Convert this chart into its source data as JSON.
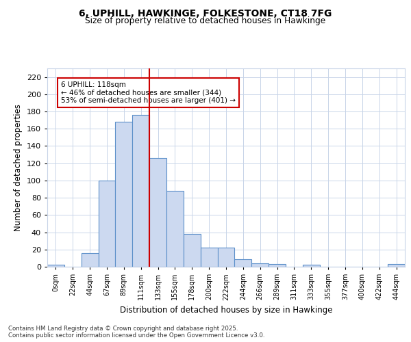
{
  "title_line1": "6, UPHILL, HAWKINGE, FOLKESTONE, CT18 7FG",
  "title_line2": "Size of property relative to detached houses in Hawkinge",
  "xlabel": "Distribution of detached houses by size in Hawkinge",
  "ylabel": "Number of detached properties",
  "bin_labels": [
    "0sqm",
    "22sqm",
    "44sqm",
    "67sqm",
    "89sqm",
    "111sqm",
    "133sqm",
    "155sqm",
    "178sqm",
    "200sqm",
    "222sqm",
    "244sqm",
    "266sqm",
    "289sqm",
    "311sqm",
    "333sqm",
    "355sqm",
    "377sqm",
    "400sqm",
    "422sqm",
    "444sqm"
  ],
  "bar_heights": [
    2,
    0,
    16,
    100,
    168,
    176,
    126,
    88,
    38,
    22,
    22,
    9,
    4,
    3,
    0,
    2,
    0,
    0,
    0,
    0,
    3
  ],
  "bar_color": "#ccd9f0",
  "bar_edge_color": "#5b8fc9",
  "vline_x": 5.5,
  "vline_color": "#cc0000",
  "annotation_text": "6 UPHILL: 118sqm\n← 46% of detached houses are smaller (344)\n53% of semi-detached houses are larger (401) →",
  "annotation_box_color": "#ffffff",
  "annotation_box_edge": "#cc0000",
  "ylim": [
    0,
    230
  ],
  "yticks": [
    0,
    20,
    40,
    60,
    80,
    100,
    120,
    140,
    160,
    180,
    200,
    220
  ],
  "footer_text": "Contains HM Land Registry data © Crown copyright and database right 2025.\nContains public sector information licensed under the Open Government Licence v3.0.",
  "bg_color": "#ffffff",
  "plot_bg_color": "#ffffff",
  "grid_color": "#c8d4e8"
}
